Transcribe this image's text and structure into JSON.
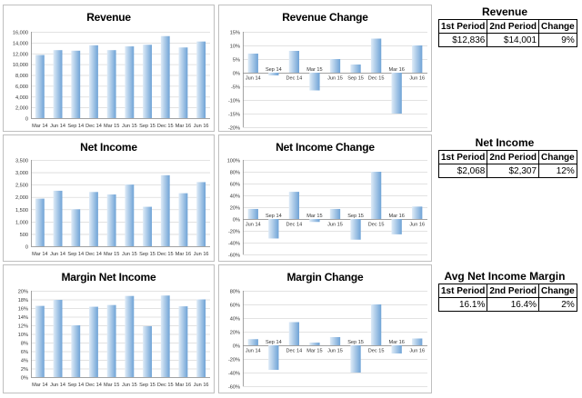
{
  "colors": {
    "bar_light": "#deebf7",
    "bar_dark": "#6fa3d6",
    "grid": "#d9d9d9",
    "axis": "#8c8c8c"
  },
  "chart_data": [
    {
      "id": "revenue",
      "type": "bar",
      "title": "Revenue",
      "categories": [
        "Mar 14",
        "Jun 14",
        "Sep 14",
        "Dec 14",
        "Mar 15",
        "Jun 15",
        "Sep 15",
        "Dec 15",
        "Mar 16",
        "Jun 16"
      ],
      "values": [
        11700,
        12600,
        12500,
        13500,
        12600,
        13300,
        13600,
        15200,
        13100,
        14200
      ],
      "ylim": [
        0,
        16000
      ],
      "yticks": [
        {
          "v": 0,
          "label": "0"
        },
        {
          "v": 2000,
          "label": "2,000"
        },
        {
          "v": 4000,
          "label": "4,000"
        },
        {
          "v": 6000,
          "label": "6,000"
        },
        {
          "v": 8000,
          "label": "8,000"
        },
        {
          "v": 10000,
          "label": "10,000"
        },
        {
          "v": 12000,
          "label": "12,000"
        },
        {
          "v": 14000,
          "label": "14,000"
        },
        {
          "v": 16000,
          "label": "16,000"
        }
      ],
      "xlabel": "",
      "ylabel": "",
      "grid": true
    },
    {
      "id": "revenue-change",
      "type": "bar",
      "title": "Revenue Change",
      "categories": [
        "Jun 14",
        "Sep 14",
        "Dec 14",
        "Mar 15",
        "Jun 15",
        "Sep 15",
        "Dec 15",
        "Mar 16",
        "Jun 16"
      ],
      "values": [
        7,
        -1,
        8,
        -6.5,
        5,
        3,
        12.5,
        -15,
        10
      ],
      "ylim": [
        -20,
        15
      ],
      "yticks": [
        {
          "v": -20,
          "label": "-20%"
        },
        {
          "v": -15,
          "label": "-15%"
        },
        {
          "v": -10,
          "label": "-10%"
        },
        {
          "v": -5,
          "label": "-5%"
        },
        {
          "v": 0,
          "label": "0%"
        },
        {
          "v": 5,
          "label": "5%"
        },
        {
          "v": 10,
          "label": "10%"
        },
        {
          "v": 15,
          "label": "15%"
        }
      ],
      "xlabel": "",
      "ylabel": "",
      "grid": true
    },
    {
      "id": "net-income",
      "type": "bar",
      "title": "Net Income",
      "categories": [
        "Mar 14",
        "Jun 14",
        "Sep 14",
        "Dec 14",
        "Mar 15",
        "Jun 15",
        "Sep 15",
        "Dec 15",
        "Mar 16",
        "Jun 16"
      ],
      "values": [
        1930,
        2250,
        1500,
        2200,
        2100,
        2500,
        1600,
        2880,
        2150,
        2600
      ],
      "ylim": [
        0,
        3500
      ],
      "yticks": [
        {
          "v": 0,
          "label": "0"
        },
        {
          "v": 500,
          "label": "500"
        },
        {
          "v": 1000,
          "label": "1,000"
        },
        {
          "v": 1500,
          "label": "1,500"
        },
        {
          "v": 2000,
          "label": "2,000"
        },
        {
          "v": 2500,
          "label": "2,500"
        },
        {
          "v": 3000,
          "label": "3,000"
        },
        {
          "v": 3500,
          "label": "3,500"
        }
      ],
      "xlabel": "",
      "ylabel": "",
      "grid": true
    },
    {
      "id": "net-income-change",
      "type": "bar",
      "title": "Net Income Change",
      "categories": [
        "Jun 14",
        "Sep 14",
        "Dec 14",
        "Mar 15",
        "Jun 15",
        "Sep 15",
        "Dec 15",
        "Mar 16",
        "Jun 16"
      ],
      "values": [
        17,
        -33,
        46,
        -5,
        17,
        -35,
        80,
        -26,
        21
      ],
      "ylim": [
        -60,
        100
      ],
      "yticks": [
        {
          "v": -60,
          "label": "-60%"
        },
        {
          "v": -40,
          "label": "-40%"
        },
        {
          "v": -20,
          "label": "-20%"
        },
        {
          "v": 0,
          "label": "0%"
        },
        {
          "v": 20,
          "label": "20%"
        },
        {
          "v": 40,
          "label": "40%"
        },
        {
          "v": 60,
          "label": "60%"
        },
        {
          "v": 80,
          "label": "80%"
        },
        {
          "v": 100,
          "label": "100%"
        }
      ],
      "xlabel": "",
      "ylabel": "",
      "grid": true
    },
    {
      "id": "margin-net-income",
      "type": "bar",
      "title": "Margin Net Income",
      "categories": [
        "Mar 14",
        "Jun 14",
        "Sep 14",
        "Dec 14",
        "Mar 15",
        "Jun 15",
        "Sep 15",
        "Dec 15",
        "Mar 16",
        "Jun 16"
      ],
      "values": [
        16.5,
        17.9,
        12.0,
        16.3,
        16.7,
        18.8,
        11.8,
        18.9,
        16.4,
        18.0
      ],
      "ylim": [
        0,
        20
      ],
      "yticks": [
        {
          "v": 0,
          "label": "0%"
        },
        {
          "v": 2,
          "label": "2%"
        },
        {
          "v": 4,
          "label": "4%"
        },
        {
          "v": 6,
          "label": "6%"
        },
        {
          "v": 8,
          "label": "8%"
        },
        {
          "v": 10,
          "label": "10%"
        },
        {
          "v": 12,
          "label": "12%"
        },
        {
          "v": 14,
          "label": "14%"
        },
        {
          "v": 16,
          "label": "16%"
        },
        {
          "v": 18,
          "label": "18%"
        },
        {
          "v": 20,
          "label": "20%"
        }
      ],
      "xlabel": "",
      "ylabel": "",
      "grid": true
    },
    {
      "id": "margin-change",
      "type": "bar",
      "title": "Margin Change",
      "categories": [
        "Jun 14",
        "Sep 14",
        "Dec 14",
        "Mar 15",
        "Jun 15",
        "Sep 15",
        "Dec 15",
        "Mar 16",
        "Jun 16"
      ],
      "values": [
        9,
        -36,
        34,
        4,
        12,
        -40,
        60,
        -12,
        10
      ],
      "ylim": [
        -60,
        80
      ],
      "yticks": [
        {
          "v": -60,
          "label": "-60%"
        },
        {
          "v": -40,
          "label": "-40%"
        },
        {
          "v": -20,
          "label": "-20%"
        },
        {
          "v": 0,
          "label": "0%"
        },
        {
          "v": 20,
          "label": "20%"
        },
        {
          "v": 40,
          "label": "40%"
        },
        {
          "v": 60,
          "label": "60%"
        },
        {
          "v": 80,
          "label": "80%"
        }
      ],
      "xlabel": "",
      "ylabel": "",
      "grid": true
    }
  ],
  "stats": {
    "revenue": {
      "title": "Revenue",
      "headers": [
        "1st Period",
        "2nd Period",
        "Change"
      ],
      "values": [
        "$12,836",
        "$14,001",
        "9%"
      ]
    },
    "net_income": {
      "title": "Net Income",
      "headers": [
        "1st Period",
        "2nd Period",
        "Change"
      ],
      "values": [
        "$2,068",
        "$2,307",
        "12%"
      ]
    },
    "margin": {
      "title": "Avg Net Income Margin",
      "headers": [
        "1st Period",
        "2nd Period",
        "Change"
      ],
      "values": [
        "16.1%",
        "16.4%",
        "2%"
      ]
    }
  }
}
